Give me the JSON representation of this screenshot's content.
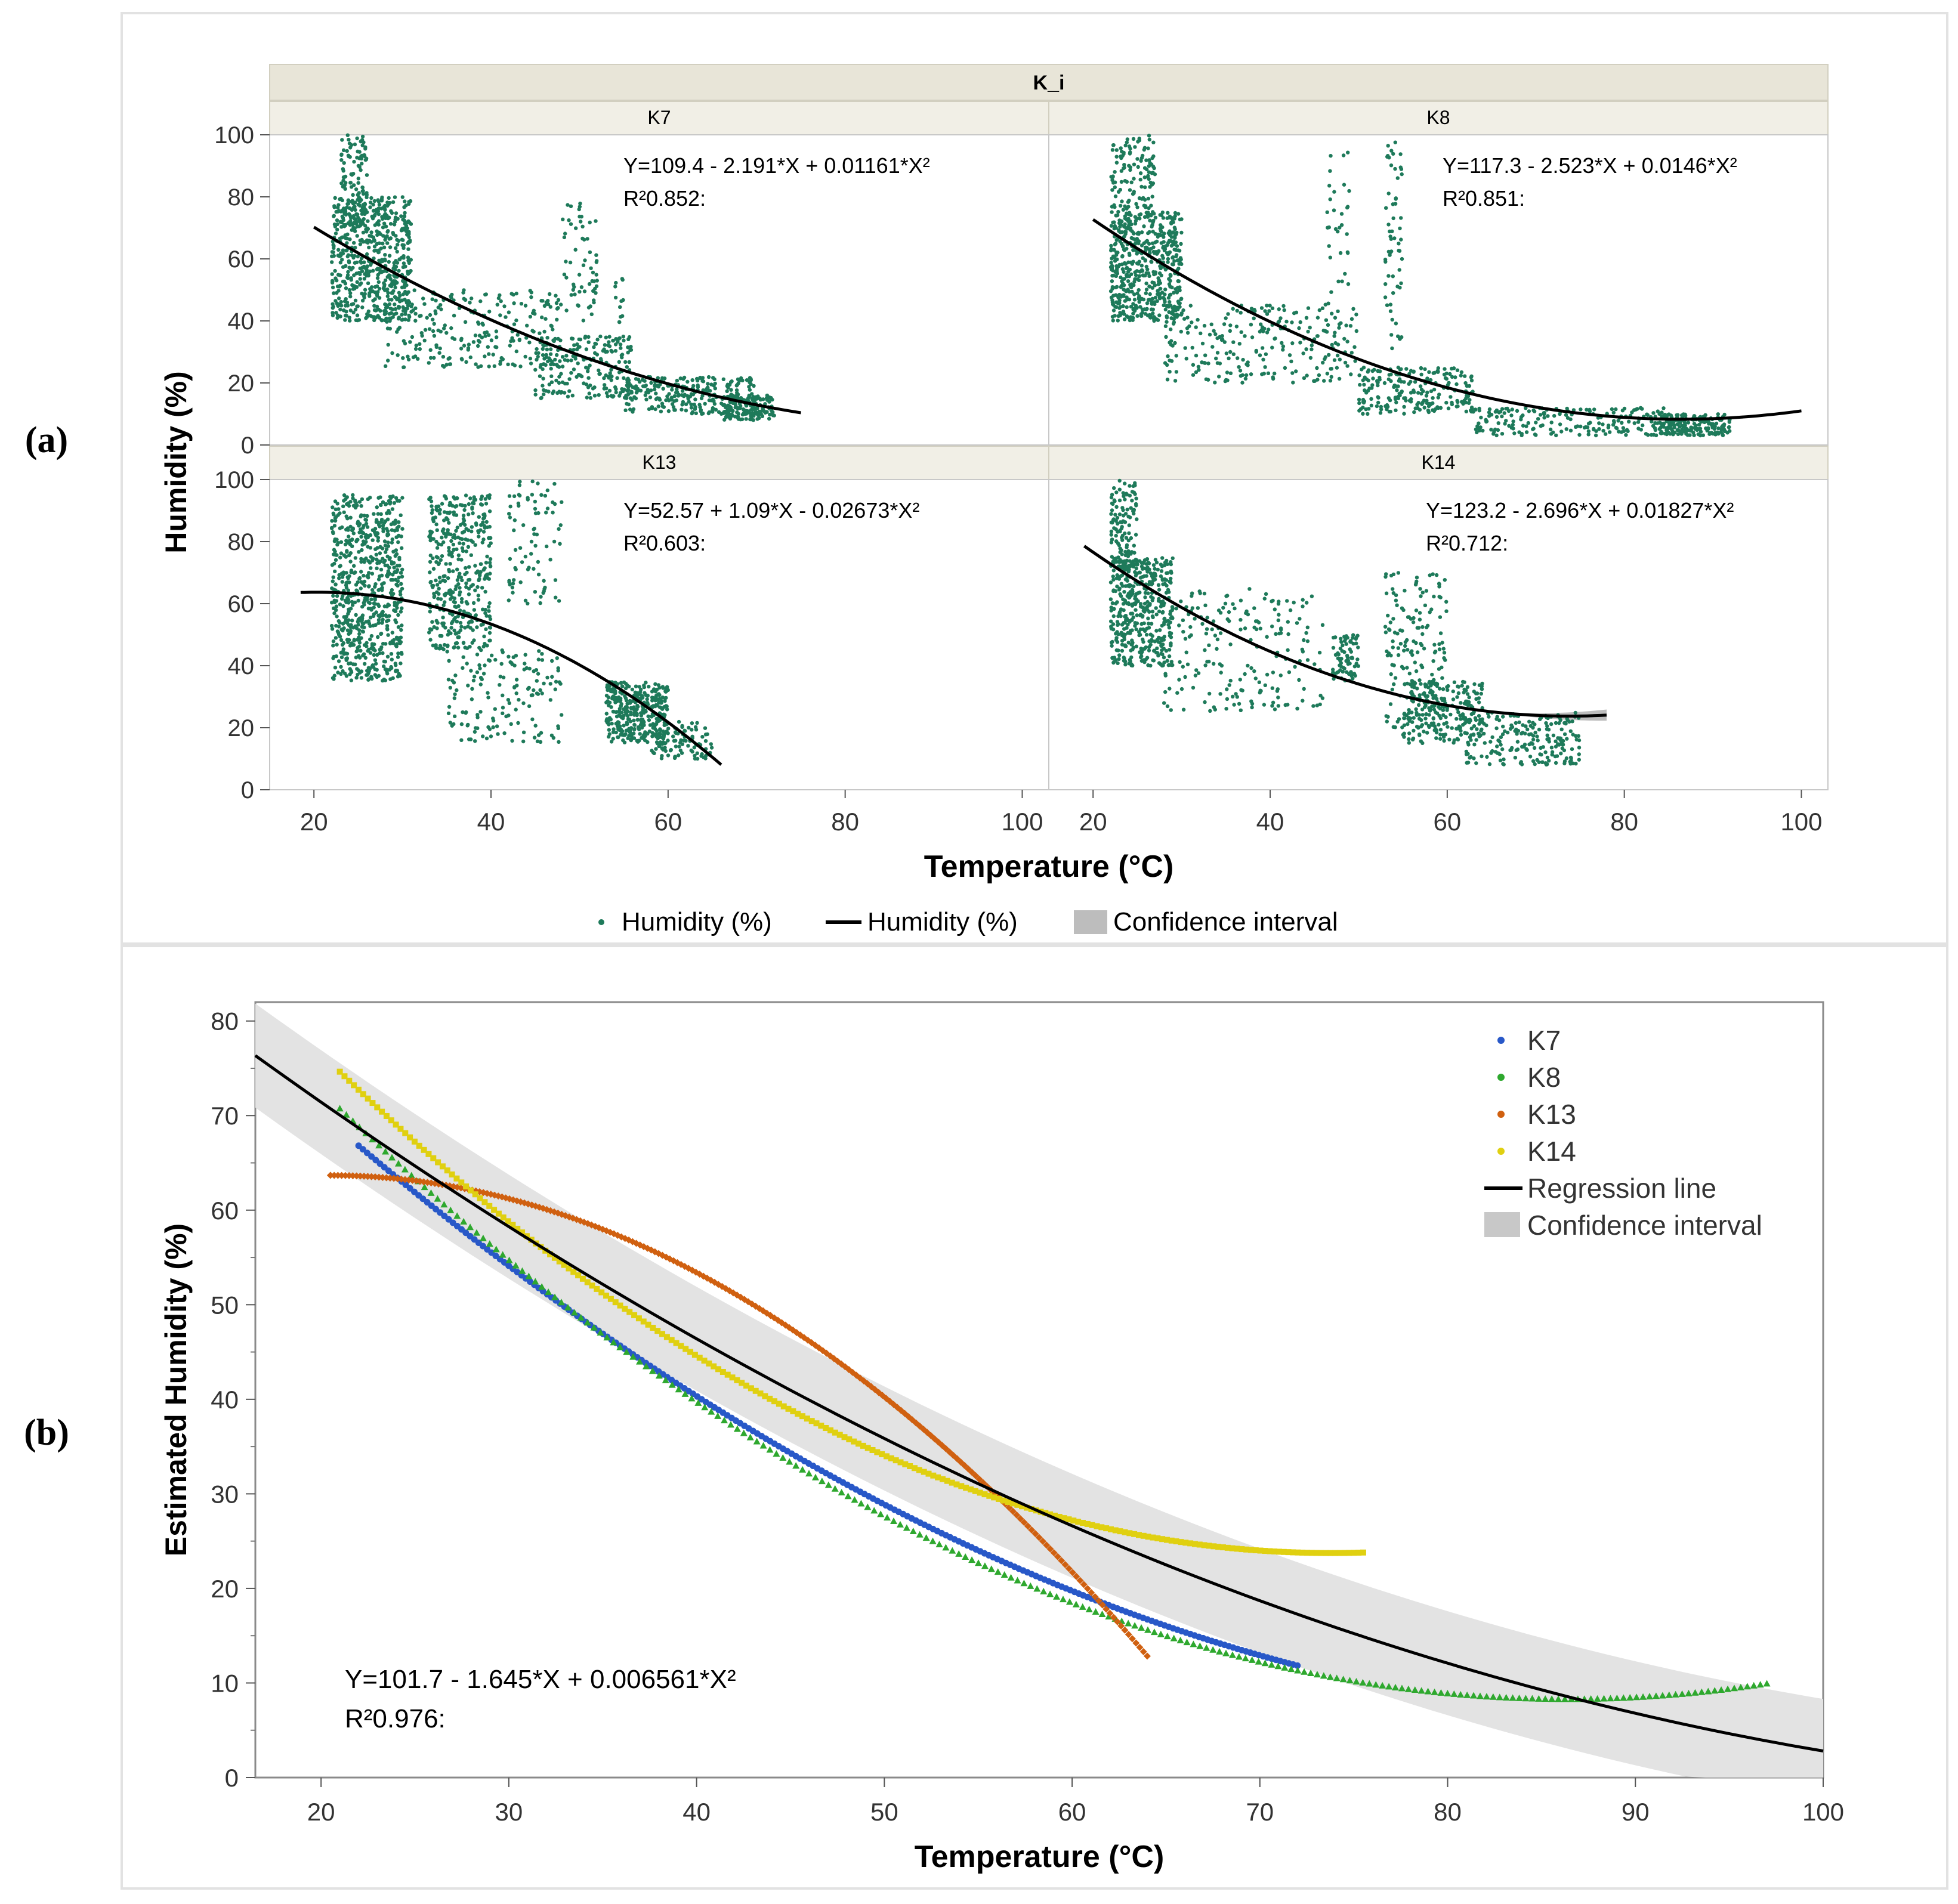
{
  "panel_labels": {
    "a": "(a)",
    "b": "(b)"
  },
  "chart_data": [
    {
      "type": "scatter",
      "panel": "(a)",
      "facet_title": "K_i",
      "xlabel": "Temperature (°C)",
      "ylabel": "Humidity (%)",
      "xlim": [
        15,
        103
      ],
      "ylim": [
        0,
        100
      ],
      "x_ticks": [
        20,
        40,
        60,
        80,
        100
      ],
      "y_ticks": [
        0,
        20,
        40,
        60,
        80,
        100
      ],
      "legend": [
        "Humidity (%)",
        "Humidity (%)",
        "Confidence interval"
      ],
      "legend_position": "bottom",
      "colors": {
        "points": "#1e7a5a",
        "fit": "#000000",
        "ci": "#bdbdbd",
        "strip": "#e8e5d8"
      },
      "facets": [
        {
          "name": "K7",
          "equation": "Y=109.4 - 2.191*X + 0.01161*X²",
          "r2": "R²0.852:",
          "fit": {
            "a": 109.4,
            "b": -2.191,
            "c": 0.01161,
            "x_range": [
              20,
              75
            ]
          },
          "clusters": [
            {
              "x": [
                22,
                31
              ],
              "y": [
                40,
                80
              ],
              "n": 600
            },
            {
              "x": [
                23,
                26
              ],
              "y": [
                70,
                100
              ],
              "n": 120
            },
            {
              "x": [
                28,
                48
              ],
              "y": [
                25,
                50
              ],
              "n": 250
            },
            {
              "x": [
                45,
                56
              ],
              "y": [
                15,
                35
              ],
              "n": 220
            },
            {
              "x": [
                48,
                52
              ],
              "y": [
                40,
                78
              ],
              "n": 60
            },
            {
              "x": [
                54,
                55
              ],
              "y": [
                30,
                56
              ],
              "n": 15
            },
            {
              "x": [
                55,
                70
              ],
              "y": [
                10,
                22
              ],
              "n": 260
            },
            {
              "x": [
                66,
                72
              ],
              "y": [
                8,
                16
              ],
              "n": 150
            }
          ]
        },
        {
          "name": "K8",
          "equation": "Y=117.3 - 2.523*X + 0.0146*X²",
          "r2": "R²0.851:",
          "fit": {
            "a": 117.3,
            "b": -2.523,
            "c": 0.0146,
            "x_range": [
              20,
              100
            ]
          },
          "clusters": [
            {
              "x": [
                22,
                30
              ],
              "y": [
                40,
                75
              ],
              "n": 550
            },
            {
              "x": [
                22,
                27
              ],
              "y": [
                75,
                100
              ],
              "n": 120
            },
            {
              "x": [
                28,
                50
              ],
              "y": [
                20,
                45
              ],
              "n": 250
            },
            {
              "x": [
                50,
                63
              ],
              "y": [
                10,
                25
              ],
              "n": 220
            },
            {
              "x": [
                53,
                55
              ],
              "y": [
                30,
                98
              ],
              "n": 60
            },
            {
              "x": [
                46,
                49
              ],
              "y": [
                40,
                95
              ],
              "n": 35
            },
            {
              "x": [
                63,
                85
              ],
              "y": [
                3,
                12
              ],
              "n": 200
            },
            {
              "x": [
                84,
                92
              ],
              "y": [
                3,
                10
              ],
              "n": 180
            }
          ]
        },
        {
          "name": "K13",
          "equation": "Y=52.57 + 1.09*X - 0.02673*X²",
          "r2": "R²0.603:",
          "fit": {
            "a": 52.57,
            "b": 1.09,
            "c": -0.02673,
            "x_range": [
              18.5,
              66
            ]
          },
          "clusters": [
            {
              "x": [
                22,
                30
              ],
              "y": [
                35,
                95
              ],
              "n": 700
            },
            {
              "x": [
                33,
                40
              ],
              "y": [
                45,
                95
              ],
              "n": 400
            },
            {
              "x": [
                35,
                48
              ],
              "y": [
                15,
                45
              ],
              "n": 150
            },
            {
              "x": [
                42,
                48
              ],
              "y": [
                60,
                100
              ],
              "n": 80
            },
            {
              "x": [
                53,
                60
              ],
              "y": [
                15,
                35
              ],
              "n": 350
            },
            {
              "x": [
                58,
                65
              ],
              "y": [
                10,
                22
              ],
              "n": 100
            }
          ]
        },
        {
          "name": "K14",
          "equation": "Y=123.2 - 2.696*X + 0.01827*X²",
          "r2": "R²0.712:",
          "fit": {
            "a": 123.2,
            "b": -2.696,
            "c": 0.01827,
            "x_range": [
              19,
              78
            ]
          },
          "clusters": [
            {
              "x": [
                22,
                29
              ],
              "y": [
                40,
                75
              ],
              "n": 450
            },
            {
              "x": [
                22,
                25
              ],
              "y": [
                70,
                100
              ],
              "n": 120
            },
            {
              "x": [
                28,
                46
              ],
              "y": [
                25,
                65
              ],
              "n": 200
            },
            {
              "x": [
                47,
                50
              ],
              "y": [
                35,
                50
              ],
              "n": 80
            },
            {
              "x": [
                53,
                60
              ],
              "y": [
                20,
                70
              ],
              "n": 180
            },
            {
              "x": [
                55,
                64
              ],
              "y": [
                15,
                35
              ],
              "n": 200
            },
            {
              "x": [
                62,
                75
              ],
              "y": [
                8,
                25
              ],
              "n": 220
            }
          ]
        }
      ]
    },
    {
      "type": "scatter",
      "panel": "(b)",
      "xlabel": "Temperature (°C)",
      "ylabel": "Estimated Humidity (%)",
      "xlim": [
        16.5,
        100
      ],
      "ylim": [
        0,
        82
      ],
      "x_ticks": [
        20,
        30,
        40,
        50,
        60,
        70,
        80,
        90,
        100
      ],
      "y_ticks": [
        0,
        10,
        20,
        30,
        40,
        50,
        60,
        70,
        80
      ],
      "legend_position": "top-right",
      "equation": "Y=101.7 - 1.645*X + 0.006561*X²",
      "r2": "R²0.976:",
      "regression": {
        "a": 101.7,
        "b": -1.645,
        "c": 0.006561,
        "x_range": [
          16.5,
          100
        ],
        "ci_halfwidth": 5.5
      },
      "series": [
        {
          "name": "K7",
          "color": "#2858c8",
          "marker": "circle",
          "a": 109.4,
          "b": -2.191,
          "c": 0.01161,
          "x_range": [
            22,
            72
          ]
        },
        {
          "name": "K8",
          "color": "#2ea82e",
          "marker": "triangle",
          "a": 117.3,
          "b": -2.523,
          "c": 0.0146,
          "x_range": [
            21,
            97
          ]
        },
        {
          "name": "K13",
          "color": "#d06010",
          "marker": "diamond",
          "a": 52.57,
          "b": 1.09,
          "c": -0.02673,
          "x_range": [
            20.5,
            64
          ]
        },
        {
          "name": "K14",
          "color": "#e0d010",
          "marker": "plus",
          "a": 123.2,
          "b": -2.696,
          "c": 0.01827,
          "x_range": [
            21,
            75.5
          ]
        }
      ],
      "legend": [
        {
          "label": "K7",
          "kind": "point",
          "color": "#2858c8"
        },
        {
          "label": "K8",
          "kind": "point",
          "color": "#2ea82e"
        },
        {
          "label": "K13",
          "kind": "point",
          "color": "#d06010"
        },
        {
          "label": "K14",
          "kind": "point",
          "color": "#e0d010"
        },
        {
          "label": "Regression line",
          "kind": "line",
          "color": "#000000"
        },
        {
          "label": "Confidence interval",
          "kind": "box",
          "color": "#c8c8c8"
        }
      ]
    }
  ]
}
